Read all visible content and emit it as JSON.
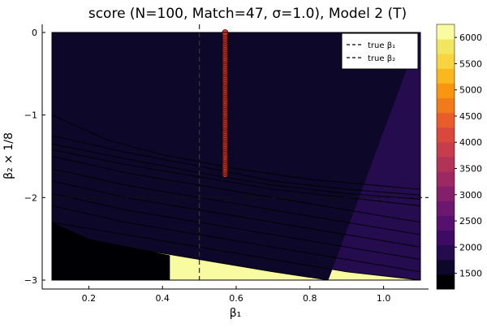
{
  "chart_data": {
    "type": "heatmap",
    "subtype": "filled-contour",
    "title": "score (N=100, Match=47, σ=1.0), Model 2 (T)",
    "xlabel": "β₁",
    "ylabel": "β₂ × 1/8",
    "xlim": [
      0.1,
      1.1
    ],
    "ylim": [
      -3.0,
      0.0
    ],
    "x_ticks": [
      0.2,
      0.4,
      0.6,
      0.8,
      1.0
    ],
    "x_tick_labels": [
      "0.2",
      "0.4",
      "0.6",
      "0.8",
      "1.0"
    ],
    "y_ticks": [
      0,
      -1,
      -2,
      -3
    ],
    "y_tick_labels": [
      "0",
      "−1",
      "−2",
      "−3"
    ],
    "grid": false,
    "colorbar": {
      "ticks": [
        1500,
        2000,
        2500,
        3000,
        3500,
        4000,
        4500,
        5000,
        5500,
        6000
      ],
      "tick_labels": [
        "1500",
        "2000",
        "2500",
        "3000",
        "3500",
        "4000",
        "4500",
        "5000",
        "5500",
        "6000"
      ],
      "range": [
        1200,
        6250
      ],
      "colors": [
        "#000004",
        "#0d0829",
        "#240c4f",
        "#3e0a63",
        "#56106e",
        "#6d186e",
        "#841f6c",
        "#9c2964",
        "#b23358",
        "#c63d4d",
        "#d8483c",
        "#e85d2a",
        "#f17a1b",
        "#f8960f",
        "#fbb71e",
        "#f7d440",
        "#f2e661",
        "#f9fba0"
      ]
    },
    "contour_levels": [
      {
        "level": 1700,
        "color": "#0d0829",
        "boundary": [
          [
            0.1,
            -2.5
          ],
          [
            0.3,
            -2.6
          ],
          [
            0.5,
            -2.75
          ],
          [
            0.7,
            -2.9
          ],
          [
            0.85,
            -3.0
          ]
        ]
      },
      {
        "level": 2000,
        "color": "#240c4f",
        "boundary": [
          [
            0.1,
            -2.3
          ],
          [
            0.3,
            -2.45
          ],
          [
            0.5,
            -2.6
          ],
          [
            0.7,
            -2.75
          ],
          [
            0.9,
            -2.9
          ],
          [
            1.1,
            -3.0
          ]
        ]
      },
      {
        "level": 2300,
        "color": "#3e0a63",
        "boundary": [
          [
            0.1,
            -2.1
          ],
          [
            0.3,
            -2.3
          ],
          [
            0.5,
            -2.45
          ],
          [
            0.7,
            -2.6
          ],
          [
            0.9,
            -2.75
          ],
          [
            1.1,
            -2.9
          ]
        ]
      },
      {
        "level": 2600,
        "color": "#56106e",
        "boundary": [
          [
            0.1,
            -1.95
          ],
          [
            0.3,
            -2.15
          ],
          [
            0.5,
            -2.3
          ],
          [
            0.7,
            -2.45
          ],
          [
            0.9,
            -2.6
          ],
          [
            1.1,
            -2.75
          ]
        ]
      },
      {
        "level": 2900,
        "color": "#6d186e",
        "boundary": [
          [
            0.1,
            -1.8
          ],
          [
            0.3,
            -2.0
          ],
          [
            0.5,
            -2.15
          ],
          [
            0.7,
            -2.3
          ],
          [
            0.9,
            -2.45
          ],
          [
            1.1,
            -2.6
          ]
        ]
      },
      {
        "level": 3200,
        "color": "#9c2964",
        "boundary": [
          [
            0.1,
            -1.65
          ],
          [
            0.3,
            -1.85
          ],
          [
            0.5,
            -2.0
          ],
          [
            0.7,
            -2.15
          ],
          [
            0.9,
            -2.3
          ],
          [
            1.1,
            -2.45
          ]
        ]
      },
      {
        "level": 3600,
        "color": "#c63d4d",
        "boundary": [
          [
            0.1,
            -1.5
          ],
          [
            0.3,
            -1.7
          ],
          [
            0.5,
            -1.85
          ],
          [
            0.7,
            -2.0
          ],
          [
            0.9,
            -2.15
          ],
          [
            1.1,
            -2.3
          ]
        ]
      },
      {
        "level": 4200,
        "color": "#d8483c",
        "boundary": [
          [
            0.1,
            -1.42
          ],
          [
            0.3,
            -1.6
          ],
          [
            0.5,
            -1.75
          ],
          [
            0.7,
            -1.9
          ],
          [
            0.9,
            -2.0
          ],
          [
            1.1,
            -2.1
          ]
        ]
      },
      {
        "level": 4800,
        "color": "#f17a1b",
        "boundary": [
          [
            0.1,
            -1.35
          ],
          [
            0.3,
            -1.53
          ],
          [
            0.5,
            -1.7
          ],
          [
            0.7,
            -1.85
          ],
          [
            0.9,
            -1.95
          ],
          [
            1.1,
            -2.02
          ]
        ]
      },
      {
        "level": 5300,
        "color": "#fbb71e",
        "boundary": [
          [
            0.1,
            -1.25
          ],
          [
            0.3,
            -1.45
          ],
          [
            0.5,
            -1.62
          ],
          [
            0.7,
            -1.8
          ],
          [
            0.9,
            -1.9
          ],
          [
            1.1,
            -1.97
          ]
        ]
      },
      {
        "level": 5700,
        "color": "#f2e661",
        "boundary": [
          [
            0.1,
            -1.0
          ],
          [
            0.25,
            -1.3
          ],
          [
            0.4,
            -1.48
          ],
          [
            0.6,
            -1.65
          ],
          [
            0.8,
            -1.78
          ],
          [
            1.1,
            -1.9
          ]
        ]
      },
      {
        "level": 6000,
        "color": "#f9fba0",
        "boundary": [
          [
            0.1,
            0.0
          ],
          [
            1.1,
            0.0
          ]
        ]
      }
    ],
    "dark_block": [
      [
        0.1,
        -2.3
      ],
      [
        0.2,
        -2.5
      ],
      [
        0.42,
        -2.7
      ],
      [
        0.42,
        -3.0
      ],
      [
        0.1,
        -3.0
      ]
    ],
    "markers": {
      "x": 0.57,
      "y_from": -1.72,
      "y_to": 0.0,
      "count": 100,
      "color": "#e8352a"
    },
    "reference_lines": [
      {
        "name": "true β₁",
        "orientation": "vertical",
        "value": 0.5
      },
      {
        "name": "true β₂",
        "orientation": "horizontal",
        "value": -2.0
      }
    ],
    "legend": {
      "placement": "top-right",
      "entries": [
        "true β₁",
        "true β₂"
      ]
    }
  }
}
